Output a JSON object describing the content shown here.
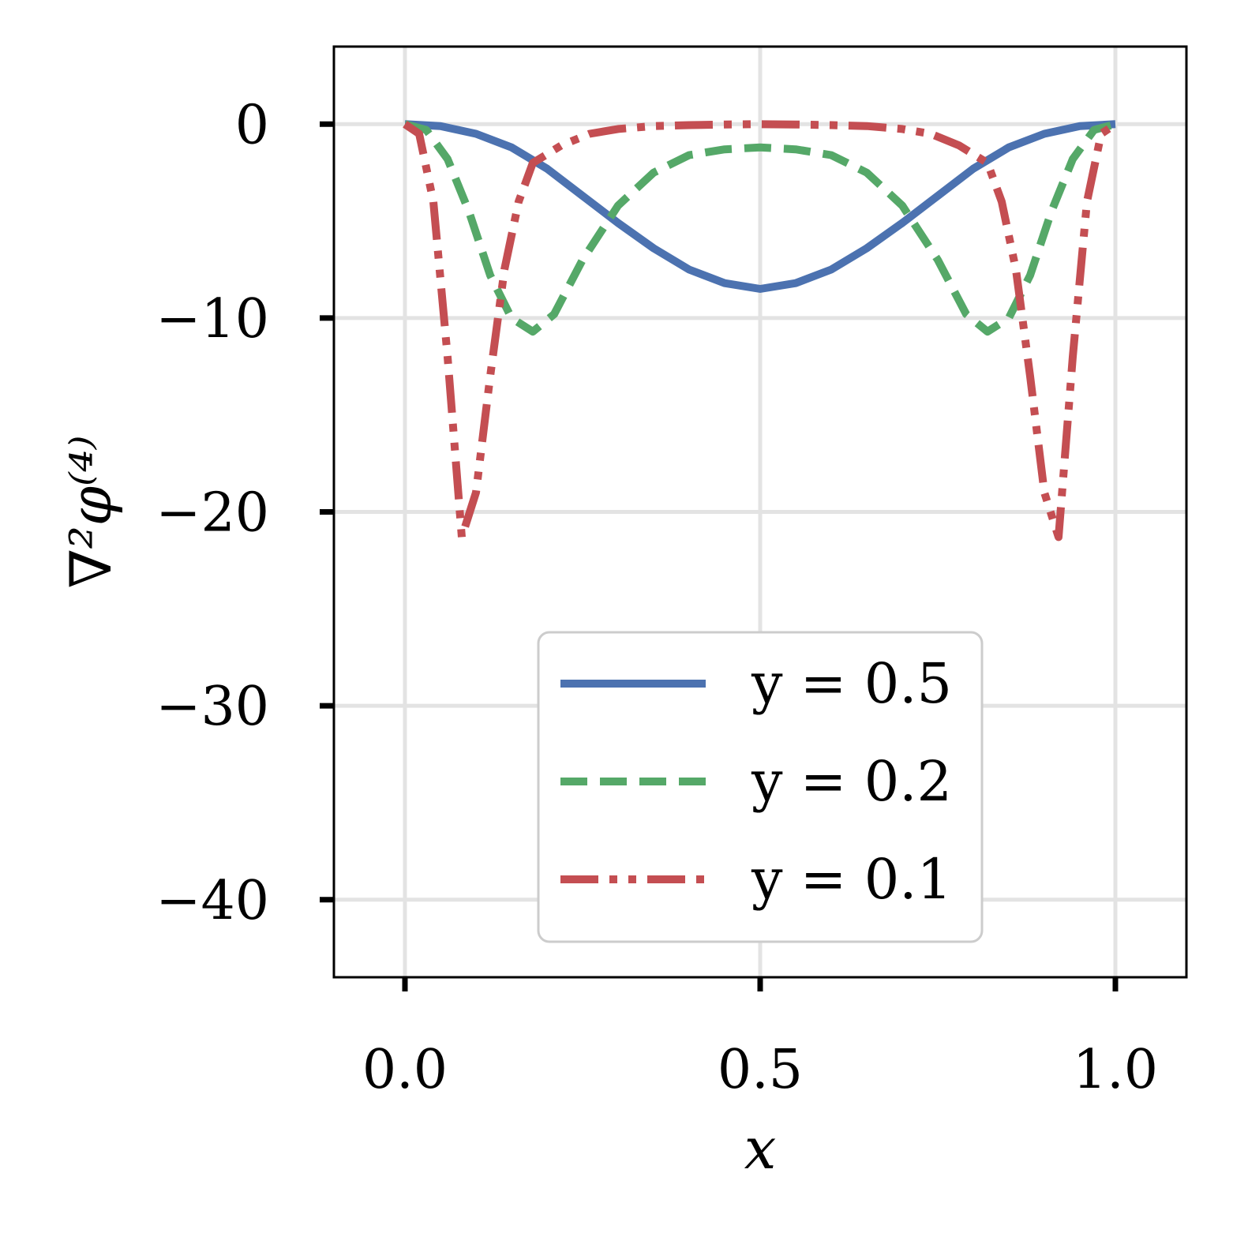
{
  "chart_data": {
    "type": "line",
    "xlabel": "x",
    "ylabel": "∇²φ⁽⁴⁾",
    "xlim": [
      -0.1,
      1.1
    ],
    "ylim": [
      -44,
      4
    ],
    "xticks": [
      0.0,
      0.5,
      1.0
    ],
    "xtick_labels": [
      "0.0",
      "0.5",
      "1.0"
    ],
    "yticks": [
      0,
      -10,
      -20,
      -30,
      -40
    ],
    "ytick_labels": [
      "0",
      "−10",
      "−20",
      "−30",
      "−40"
    ],
    "grid": true,
    "legend_position": "lower-center",
    "series": [
      {
        "name": "y = 0.5",
        "color": "#4C72B0",
        "dash": "solid",
        "x": [
          0.0,
          0.05,
          0.1,
          0.15,
          0.2,
          0.25,
          0.3,
          0.35,
          0.4,
          0.45,
          0.5,
          0.55,
          0.6,
          0.65,
          0.7,
          0.75,
          0.8,
          0.85,
          0.9,
          0.95,
          1.0
        ],
        "y": [
          0.0,
          -0.1,
          -0.5,
          -1.2,
          -2.3,
          -3.7,
          -5.1,
          -6.4,
          -7.5,
          -8.2,
          -8.5,
          -8.2,
          -7.5,
          -6.4,
          -5.1,
          -3.7,
          -2.3,
          -1.2,
          -0.5,
          -0.1,
          0.0
        ]
      },
      {
        "name": "y = 0.2",
        "color": "#55A868",
        "dash": "dashed",
        "x": [
          0.0,
          0.03,
          0.06,
          0.09,
          0.12,
          0.15,
          0.18,
          0.21,
          0.25,
          0.3,
          0.35,
          0.4,
          0.45,
          0.5,
          0.55,
          0.6,
          0.65,
          0.7,
          0.75,
          0.79,
          0.82,
          0.85,
          0.88,
          0.91,
          0.94,
          0.97,
          1.0
        ],
        "y": [
          0.0,
          -0.3,
          -1.8,
          -4.5,
          -7.8,
          -10.0,
          -10.7,
          -9.8,
          -7.0,
          -4.2,
          -2.5,
          -1.6,
          -1.3,
          -1.2,
          -1.3,
          -1.6,
          -2.5,
          -4.2,
          -7.0,
          -9.8,
          -10.7,
          -10.0,
          -7.8,
          -4.5,
          -1.8,
          -0.3,
          0.0
        ]
      },
      {
        "name": "y = 0.1",
        "color": "#C44E52",
        "dash": "dashdotdot",
        "x": [
          0.0,
          0.02,
          0.04,
          0.06,
          0.08,
          0.1,
          0.12,
          0.14,
          0.16,
          0.18,
          0.22,
          0.26,
          0.3,
          0.35,
          0.4,
          0.45,
          0.5,
          0.55,
          0.6,
          0.65,
          0.7,
          0.74,
          0.78,
          0.82,
          0.84,
          0.86,
          0.88,
          0.9,
          0.92,
          0.94,
          0.96,
          0.98,
          1.0
        ],
        "y": [
          0.0,
          -0.5,
          -4.0,
          -12.0,
          -21.3,
          -19.0,
          -13.0,
          -7.5,
          -4.0,
          -2.0,
          -1.1,
          -0.5,
          -0.25,
          -0.1,
          -0.05,
          -0.02,
          0.0,
          -0.02,
          -0.05,
          -0.1,
          -0.25,
          -0.5,
          -1.1,
          -2.0,
          -4.0,
          -7.5,
          -13.0,
          -19.0,
          -21.3,
          -12.0,
          -4.0,
          -0.5,
          0.0
        ]
      }
    ]
  }
}
